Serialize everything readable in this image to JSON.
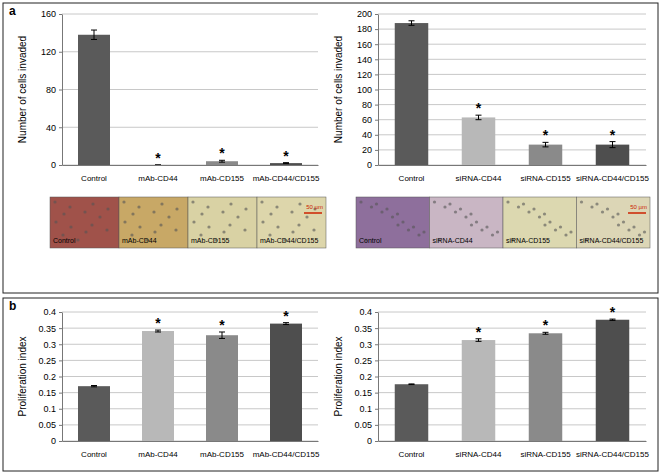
{
  "chart_data": [
    {
      "type": "bar",
      "ylabel": "Number of cells invaded",
      "categories": [
        "Control",
        "mAb-CD44",
        "mAb-CD155",
        "mAb-CD44/CD155"
      ],
      "values": [
        138,
        0,
        4,
        2
      ],
      "errors": [
        5,
        0,
        1,
        0.5
      ],
      "colors": [
        "#5a5a5a",
        "#b8b8b8",
        "#8a8a8a",
        "#4e4e4e"
      ],
      "annotations": [
        null,
        "*",
        "*",
        "*"
      ],
      "ylim": [
        0,
        160
      ],
      "yticks": [
        0,
        40,
        80,
        120,
        160
      ],
      "grid": true
    },
    {
      "type": "bar",
      "ylabel": "Number of cells invaded",
      "categories": [
        "Control",
        "siRNA-CD44",
        "siRNA-CD155",
        "siRNA-CD44/CD155"
      ],
      "values": [
        188,
        63,
        27,
        27
      ],
      "errors": [
        3,
        3,
        3,
        4
      ],
      "colors": [
        "#5a5a5a",
        "#b8b8b8",
        "#8a8a8a",
        "#4e4e4e"
      ],
      "annotations": [
        null,
        "*",
        "*",
        "*"
      ],
      "ylim": [
        0,
        200
      ],
      "yticks": [
        0,
        20,
        40,
        60,
        80,
        100,
        120,
        140,
        160,
        180,
        200
      ],
      "grid": true
    },
    {
      "type": "bar",
      "ylabel": "Proliferation index",
      "categories": [
        "Control",
        "mAb-CD44",
        "mAb-CD155",
        "mAb-CD44/CD155"
      ],
      "values": [
        0.17,
        0.341,
        0.328,
        0.364
      ],
      "errors": [
        0.002,
        0.003,
        0.01,
        0.003
      ],
      "colors": [
        "#5a5a5a",
        "#b8b8b8",
        "#8a8a8a",
        "#4e4e4e"
      ],
      "annotations": [
        null,
        "*",
        "*",
        "*"
      ],
      "ylim": [
        0,
        0.4
      ],
      "yticks": [
        0,
        0.05,
        0.1,
        0.15,
        0.2,
        0.25,
        0.3,
        0.35,
        0.4
      ],
      "grid": true
    },
    {
      "type": "bar",
      "ylabel": "Proliferation index",
      "categories": [
        "Control",
        "siRNA-CD44",
        "siRNA-CD155",
        "siRNA-CD44/CD155"
      ],
      "values": [
        0.176,
        0.313,
        0.334,
        0.376
      ],
      "errors": [
        0.001,
        0.004,
        0.003,
        0.002
      ],
      "colors": [
        "#5a5a5a",
        "#b8b8b8",
        "#8a8a8a",
        "#4e4e4e"
      ],
      "annotations": [
        null,
        "*",
        "*",
        "*"
      ],
      "ylim": [
        0,
        0.4
      ],
      "yticks": [
        0,
        0.05,
        0.1,
        0.15,
        0.2,
        0.25,
        0.3,
        0.35,
        0.4
      ],
      "grid": true
    }
  ],
  "panel_labels": [
    "a",
    "b"
  ],
  "image_strips": [
    {
      "labels": [
        "Control",
        "mAb-CD44",
        "mAb-CD155",
        "mAb-CD44/CD155"
      ],
      "scale_bar": "50 µm"
    },
    {
      "labels": [
        "Control",
        "siRNA-CD44",
        "siRNA-CD155",
        "siRNA-CD44/CD155"
      ],
      "scale_bar": "50 µm"
    }
  ]
}
